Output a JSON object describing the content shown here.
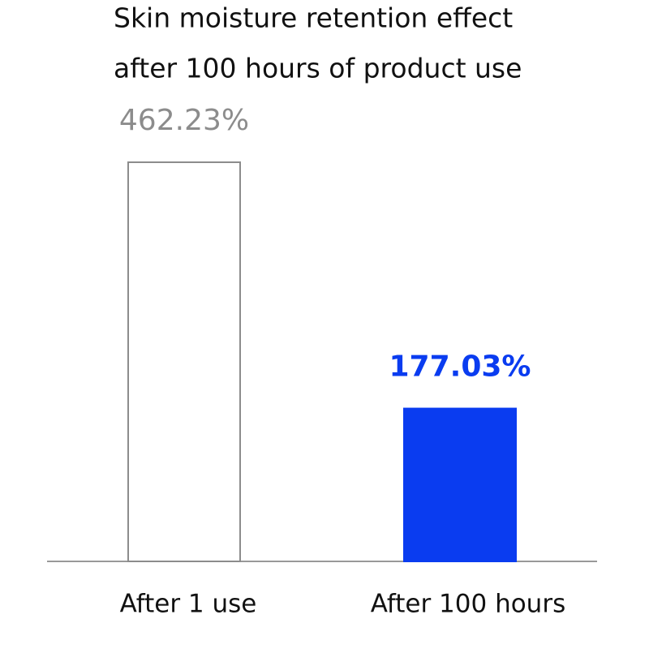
{
  "chart_data": {
    "type": "bar",
    "title": [
      "Skin moisture retention effect",
      "after 100 hours of product use"
    ],
    "categories": [
      "After 1 use",
      "After 100 hours"
    ],
    "values": [
      462.23,
      177.03
    ],
    "value_labels": [
      "462.23%",
      "177.03%"
    ],
    "colors": [
      "#ffffff",
      "#0a3cf0"
    ],
    "edge_colors": [
      "#8c8c8c",
      "#0a3cf0"
    ],
    "label_colors": [
      "#8c8c8c",
      "#0a3cf0"
    ]
  }
}
